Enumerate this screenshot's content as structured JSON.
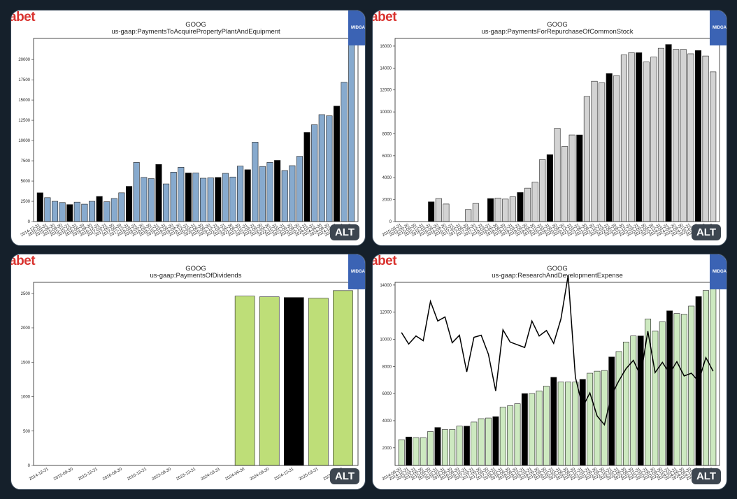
{
  "brand_text": "abet",
  "badge_text": "MIDGA",
  "alt_label": "ALT",
  "chart_data": [
    {
      "type": "bar",
      "title": "GOOG",
      "subtitle": "us-gaap:PaymentsToAcquirePropertyPlantAndEquipment",
      "color": "#87aace",
      "highlight_color": "#000000",
      "ylim": [
        0,
        22600
      ],
      "yticks": [
        0,
        2500,
        5000,
        7500,
        10000,
        12500,
        15000,
        17500,
        20000
      ],
      "values": [
        3550,
        2950,
        2500,
        2350,
        2100,
        2400,
        2150,
        2500,
        3100,
        2450,
        2850,
        3550,
        4350,
        7300,
        5450,
        5300,
        7050,
        4650,
        6100,
        6700,
        6000,
        6000,
        5350,
        5400,
        5450,
        5950,
        5500,
        6850,
        6400,
        9800,
        6800,
        7300,
        7550,
        6300,
        6900,
        8050,
        11000,
        11950,
        13200,
        13050,
        14250,
        17200,
        22600
      ],
      "highlighted_indices": [
        0,
        4,
        8,
        12,
        16,
        20,
        24,
        28,
        32,
        36,
        40
      ],
      "x_labels": [
        "2014-12-31",
        "2015-03-31",
        "2015-06-30",
        "2015-09-30",
        "2015-12-31",
        "2016-03-31",
        "2016-06-30",
        "2016-09-30",
        "2016-12-31",
        "2017-03-31",
        "2017-06-30",
        "2017-09-30",
        "2017-12-31",
        "2018-03-31",
        "2018-06-30",
        "2018-09-30",
        "2018-12-31",
        "2019-03-31",
        "2019-06-30",
        "2019-09-30",
        "2019-12-31",
        "2020-03-31",
        "2020-06-30",
        "2020-09-30",
        "2020-12-31",
        "2021-03-31",
        "2021-06-30",
        "2021-09-30",
        "2021-12-31",
        "2022-03-31",
        "2022-06-30",
        "2022-09-30",
        "2022-12-31",
        "2023-03-31",
        "2023-06-30",
        "2023-09-30",
        "2023-12-31",
        "2024-03-31",
        "2024-06-30",
        "2024-09-30",
        "2024-12-31",
        "2025-03-31",
        "2025-06-30"
      ]
    },
    {
      "type": "bar",
      "title": "GOOG",
      "subtitle": "us-gaap:PaymentsForRepurchaseOfCommonStock",
      "color": "#d3d3d3",
      "highlight_color": "#000000",
      "ylim": [
        0,
        16700
      ],
      "yticks": [
        0,
        2000,
        4000,
        6000,
        8000,
        10000,
        12000,
        14000,
        16000
      ],
      "values": [
        0,
        0,
        0,
        0,
        1800,
        2100,
        1600,
        0,
        0,
        1100,
        1650,
        0,
        2100,
        2150,
        2050,
        2250,
        2650,
        3050,
        3600,
        5650,
        6100,
        8500,
        6850,
        7900,
        7900,
        11400,
        12800,
        12650,
        13500,
        13300,
        15200,
        15400,
        15400,
        14550,
        15000,
        15800,
        16150,
        15700,
        15700,
        15300,
        15600,
        15100,
        13650
      ],
      "highlighted_indices": [
        4,
        12,
        16,
        20,
        24,
        28,
        32,
        36,
        40
      ],
      "x_labels": [
        "2015-03-31",
        "2015-06-30",
        "2015-09-30",
        "2015-12-31",
        "2016-03-31",
        "2016-06-30",
        "2016-09-30",
        "2016-12-31",
        "2017-03-31",
        "2017-06-30",
        "2017-09-30",
        "2017-12-31",
        "2018-03-31",
        "2018-06-30",
        "2018-09-30",
        "2018-12-31",
        "2019-03-31",
        "2019-06-30",
        "2019-09-30",
        "2019-12-31",
        "2020-03-31",
        "2020-06-30",
        "2020-09-30",
        "2020-12-31",
        "2021-03-31",
        "2021-06-30",
        "2021-09-30",
        "2021-12-31",
        "2022-03-31",
        "2022-06-30",
        "2022-09-30",
        "2022-12-31",
        "2023-03-31",
        "2023-06-30",
        "2023-09-30",
        "2023-12-31",
        "2024-03-31",
        "2024-06-30",
        "2024-09-30",
        "2024-12-31",
        "2025-03-31",
        "2025-06-30",
        "2025-09-30"
      ]
    },
    {
      "type": "bar",
      "title": "GOOG",
      "subtitle": "us-gaap:PaymentsOfDividends",
      "color": "#bede78",
      "highlight_color": "#000000",
      "ylim": [
        0,
        2660
      ],
      "yticks": [
        0,
        500,
        1000,
        1500,
        2000,
        2500
      ],
      "values": [
        0,
        0,
        0,
        0,
        0,
        0,
        0,
        0,
        2460,
        2450,
        2440,
        2430,
        2540
      ],
      "highlighted_indices": [
        10
      ],
      "x_labels": [
        "2014-12-31",
        "2015-09-30",
        "2015-12-31",
        "2016-09-30",
        "2016-12-31",
        "2023-09-30",
        "2023-12-31",
        "2024-03-31",
        "2024-06-30",
        "2024-09-30",
        "2024-12-31",
        "2025-03-31",
        "2025-06-30"
      ]
    },
    {
      "type": "bar",
      "title": "GOOG",
      "subtitle": "us-gaap:ResearchAndDevelopmentExpense",
      "color": "#cde9c0",
      "highlight_color": "#000000",
      "ylim": [
        700,
        14200
      ],
      "yticks": [
        2000,
        4000,
        6000,
        8000,
        10000,
        12000,
        14000
      ],
      "values": [
        2600,
        2800,
        2750,
        2750,
        3200,
        3500,
        3350,
        3350,
        3600,
        3600,
        3900,
        4150,
        4200,
        4300,
        5000,
        5100,
        5250,
        6000,
        6000,
        6200,
        6550,
        7200,
        6850,
        6850,
        6850,
        7050,
        7500,
        7650,
        7700,
        8700,
        9100,
        9800,
        10250,
        10250,
        11500,
        10600,
        11300,
        12100,
        11900,
        11850,
        12450,
        13150,
        13600,
        13800
      ],
      "highlighted_indices": [
        1,
        5,
        9,
        13,
        17,
        21,
        25,
        29,
        33,
        37,
        41
      ],
      "line_series": [
        10500,
        9650,
        10250,
        9900,
        12800,
        11350,
        11650,
        9750,
        10300,
        7600,
        10150,
        10300,
        8900,
        6200,
        10700,
        9800,
        9600,
        9400,
        11350,
        10250,
        10650,
        9700,
        11500,
        14700,
        7200,
        5000,
        6050,
        4350,
        3700,
        5900,
        6950,
        7850,
        8450,
        7300,
        10600,
        7550,
        8300,
        7500,
        8350,
        7300,
        7500,
        6900,
        8650,
        7650
      ],
      "x_labels": [
        "2014-09-30",
        "2014-12-31",
        "2015-03-31",
        "2015-06-30",
        "2015-09-30",
        "2015-12-31",
        "2016-03-31",
        "2016-06-30",
        "2016-09-30",
        "2016-12-31",
        "2017-03-31",
        "2017-06-30",
        "2017-09-30",
        "2017-12-31",
        "2018-03-31",
        "2018-06-30",
        "2018-09-30",
        "2018-12-31",
        "2019-03-31",
        "2019-06-30",
        "2019-09-30",
        "2019-12-31",
        "2020-03-31",
        "2020-06-30",
        "2020-09-30",
        "2020-12-31",
        "2021-03-31",
        "2021-06-30",
        "2021-09-30",
        "2021-12-31",
        "2022-03-31",
        "2022-06-30",
        "2022-09-30",
        "2022-12-31",
        "2023-03-31",
        "2023-06-30",
        "2023-09-30",
        "2023-12-31",
        "2024-03-31",
        "2024-06-30",
        "2024-09-30",
        "2024-12-31",
        "2025-03-31",
        "2025-06-30"
      ]
    }
  ]
}
